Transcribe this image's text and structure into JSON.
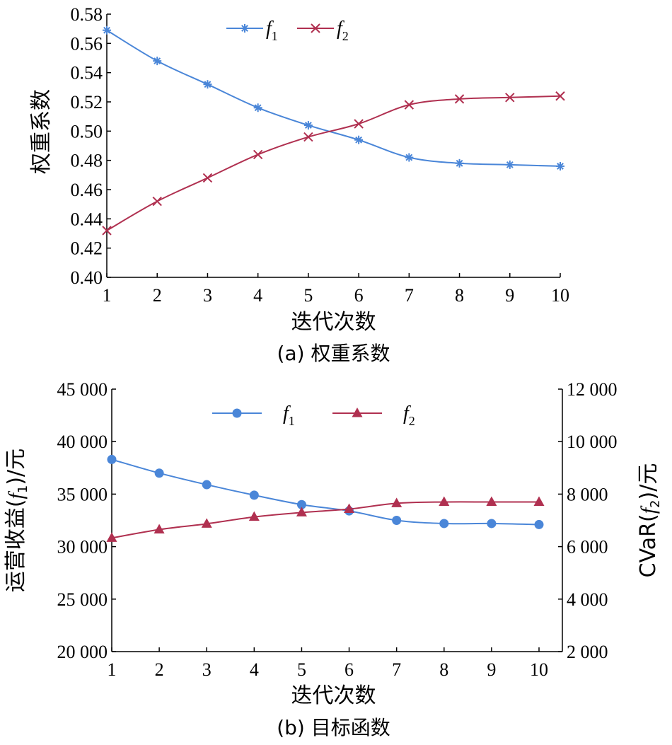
{
  "chart_data": [
    {
      "type": "line",
      "x": [
        1,
        2,
        3,
        4,
        5,
        6,
        7,
        8,
        9,
        10
      ],
      "series": [
        {
          "name": "f1",
          "values": [
            0.569,
            0.548,
            0.532,
            0.516,
            0.504,
            0.494,
            0.482,
            0.478,
            0.477,
            0.476
          ],
          "color": "#4a86d8",
          "marker": "asterisk"
        },
        {
          "name": "f2",
          "values": [
            0.432,
            0.452,
            0.468,
            0.484,
            0.496,
            0.505,
            0.518,
            0.522,
            0.523,
            0.524
          ],
          "color": "#b03050",
          "marker": "x"
        }
      ],
      "xlabel": "迭代次数",
      "ylabel": "权重系数",
      "caption": "(a) 权重系数",
      "ylim": [
        0.4,
        0.58
      ],
      "yticks": [
        "0.40",
        "0.42",
        "0.44",
        "0.46",
        "0.48",
        "0.50",
        "0.52",
        "0.54",
        "0.56",
        "0.58"
      ],
      "xticks": [
        "1",
        "2",
        "3",
        "4",
        "5",
        "6",
        "7",
        "8",
        "9",
        "10"
      ],
      "legend": "top-center"
    },
    {
      "type": "line",
      "x": [
        1,
        2,
        3,
        4,
        5,
        6,
        7,
        8,
        9,
        10
      ],
      "series": [
        {
          "name": "f1",
          "axis": "left",
          "values": [
            38300,
            37000,
            35900,
            34900,
            34000,
            33400,
            32500,
            32200,
            32200,
            32100
          ],
          "color": "#4a86d8",
          "marker": "circle"
        },
        {
          "name": "f2",
          "axis": "right",
          "values": [
            6330,
            6650,
            6870,
            7130,
            7300,
            7430,
            7650,
            7700,
            7700,
            7700
          ],
          "color": "#b03050",
          "marker": "triangle"
        }
      ],
      "xlabel": "迭代次数",
      "ylabel_left": "运营收益(f1)/元",
      "ylabel_right": "CVaR(f2)/元",
      "caption": "(b) 目标函数",
      "ylim_left": [
        20000,
        45000
      ],
      "ylim_right": [
        2000,
        12000
      ],
      "yticks_left": [
        "20 000",
        "25 000",
        "30 000",
        "35 000",
        "40 000",
        "45 000"
      ],
      "yticks_right": [
        "2 000",
        "4 000",
        "6 000",
        "8 000",
        "10 000",
        "12 000"
      ],
      "xticks": [
        "1",
        "2",
        "3",
        "4",
        "5",
        "6",
        "7",
        "8",
        "9",
        "10"
      ],
      "legend": "top-center"
    }
  ]
}
